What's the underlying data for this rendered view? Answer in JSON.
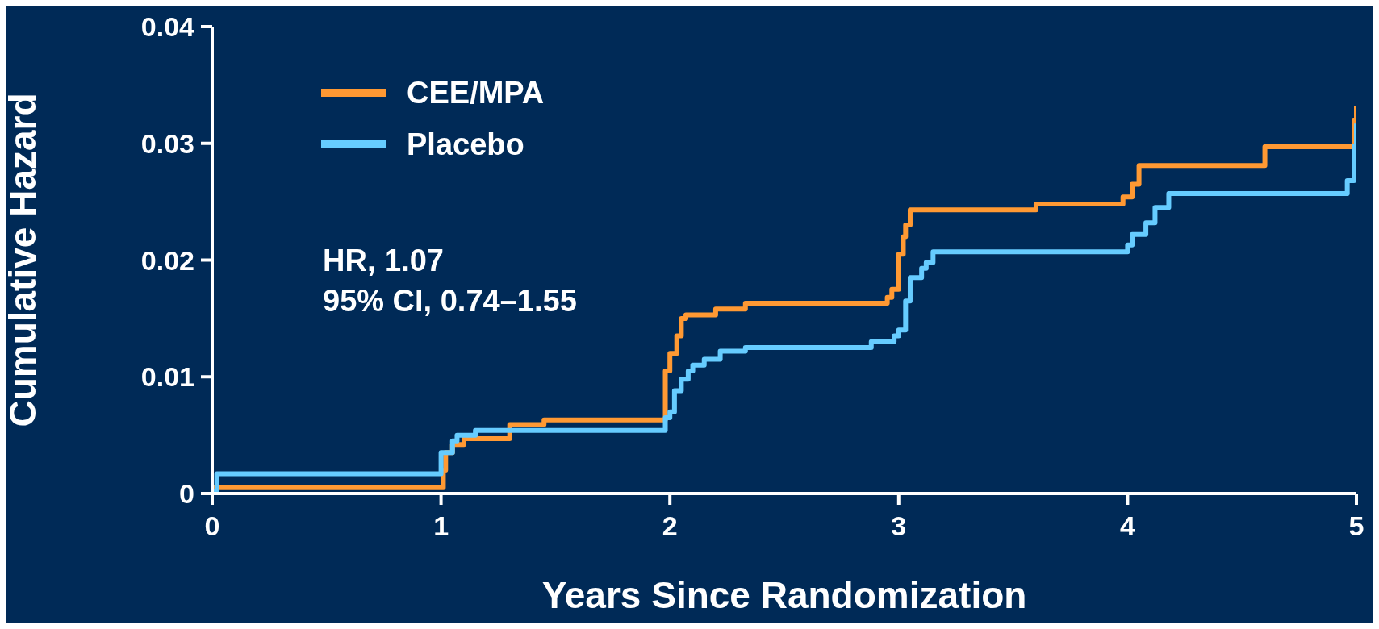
{
  "chart_data": {
    "type": "step",
    "xlabel": "Years Since Randomization",
    "ylabel": "Cumulative Hazard",
    "xlim": [
      0,
      5
    ],
    "xticks": [
      0,
      1,
      2,
      3,
      4,
      5
    ],
    "ylim": [
      0,
      0.04
    ],
    "yticks": [
      0,
      0.01,
      0.02,
      0.03,
      0.04
    ],
    "grid": false,
    "legend": "top left",
    "marker": "none",
    "line_style": "solid",
    "annotations": [
      "HR, 1.07",
      "95% CI, 0.74–1.55"
    ],
    "series": [
      {
        "name": "CEE/MPA",
        "color": "#ff9933",
        "x": [
          0,
          1.01,
          1.02,
          1.05,
          1.1,
          1.3,
          1.45,
          1.98,
          2.0,
          2.03,
          2.05,
          2.07,
          2.2,
          2.33,
          2.95,
          2.97,
          3.0,
          3.02,
          3.03,
          3.05,
          3.09,
          3.6,
          3.98,
          4.02,
          4.05,
          4.6,
          4.99,
          5.0
        ],
        "values": [
          0.0005,
          0.002,
          0.0035,
          0.0042,
          0.0047,
          0.0059,
          0.0063,
          0.0105,
          0.012,
          0.0135,
          0.015,
          0.0153,
          0.0158,
          0.0163,
          0.0168,
          0.0175,
          0.0205,
          0.022,
          0.023,
          0.0243,
          0.0243,
          0.0248,
          0.0254,
          0.0265,
          0.0281,
          0.0297,
          0.032,
          0.0332
        ]
      },
      {
        "name": "Placebo",
        "color": "#66ccff",
        "x": [
          0,
          0.02,
          1.0,
          1.05,
          1.07,
          1.15,
          1.98,
          2.0,
          2.02,
          2.05,
          2.08,
          2.1,
          2.15,
          2.22,
          2.33,
          2.88,
          2.98,
          3.0,
          3.03,
          3.05,
          3.1,
          3.12,
          3.15,
          4.0,
          4.02,
          4.08,
          4.12,
          4.18,
          4.96,
          4.99,
          5.0
        ],
        "values": [
          0.0002,
          0.0017,
          0.0035,
          0.0045,
          0.005,
          0.0054,
          0.0065,
          0.007,
          0.0088,
          0.0098,
          0.0105,
          0.011,
          0.0115,
          0.0122,
          0.0125,
          0.013,
          0.0135,
          0.014,
          0.0165,
          0.0185,
          0.0193,
          0.0198,
          0.0207,
          0.0213,
          0.0222,
          0.0232,
          0.0245,
          0.0257,
          0.0268,
          0.0298,
          0.0317
        ]
      }
    ]
  }
}
